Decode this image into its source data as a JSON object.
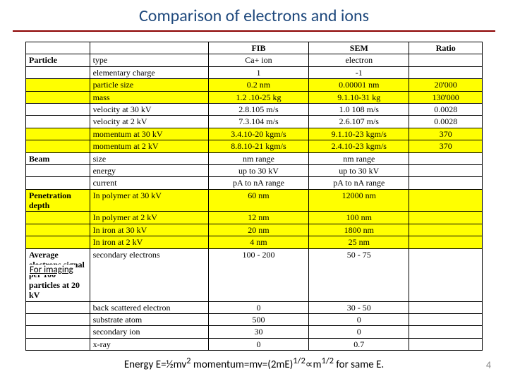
{
  "title": "Comparison of electrons and ions",
  "headers": {
    "c1": "",
    "c2": "",
    "c3": "FIB",
    "c4": "SEM",
    "c5": "Ratio"
  },
  "rows": [
    {
      "cat": "Particle",
      "prop": "type",
      "fib": "Ca+ ion",
      "sem": "electron",
      "ratio": "",
      "hl": false
    },
    {
      "cat": "",
      "prop": "elementary charge",
      "fib": "1",
      "sem": "-1",
      "ratio": "",
      "hl": false
    },
    {
      "cat": "",
      "prop": "particle size",
      "fib": "0.2 nm",
      "sem": "0.00001 nm",
      "ratio": "20'000",
      "hl": true
    },
    {
      "cat": "",
      "prop": "mass",
      "fib": "1.2 .10-25 kg",
      "sem": "9.1.10-31 kg",
      "ratio": "130'000",
      "hl": true
    },
    {
      "cat": "",
      "prop": "velocity at 30 kV",
      "fib": "2.8.105 m/s",
      "sem": "1.0 108 m/s",
      "ratio": "0.0028",
      "hl": false
    },
    {
      "cat": "",
      "prop": "velocity at 2 kV",
      "fib": "7.3.104 m/s",
      "sem": "2.6.107 m/s",
      "ratio": "0.0028",
      "hl": false
    },
    {
      "cat": "",
      "prop": "momentum at 30 kV",
      "fib": "3.4.10-20 kgm/s",
      "sem": "9.1.10-23 kgm/s",
      "ratio": "370",
      "hl": true
    },
    {
      "cat": "",
      "prop": "momentum at 2 kV",
      "fib": "8.8.10-21 kgm/s",
      "sem": "2.4.10-23 kgm/s",
      "ratio": "370",
      "hl": true
    },
    {
      "cat": "Beam",
      "prop": "size",
      "fib": "nm range",
      "sem": "nm range",
      "ratio": "",
      "hl": false
    },
    {
      "cat": "",
      "prop": "energy",
      "fib": "up to 30 kV",
      "sem": "up to 30 kV",
      "ratio": "",
      "hl": false
    },
    {
      "cat": "",
      "prop": "current",
      "fib": "pA to nA range",
      "sem": "pA to nA range",
      "ratio": "",
      "hl": false
    },
    {
      "cat": "Penetration depth",
      "prop": "In polymer at 30 kV",
      "fib": "60 nm",
      "sem": "12000 nm",
      "ratio": "",
      "hl": true
    },
    {
      "cat": "",
      "prop": "In polymer at 2 kV",
      "fib": "12 nm",
      "sem": "100 nm",
      "ratio": "",
      "hl": true
    },
    {
      "cat": "",
      "prop": "In iron at 30 kV",
      "fib": "20 nm",
      "sem": "1800 nm",
      "ratio": "",
      "hl": true
    },
    {
      "cat": "",
      "prop": "In iron at 2 kV",
      "fib": "4 nm",
      "sem": "25 nm",
      "ratio": "",
      "hl": true
    },
    {
      "cat": "Average electrons signal per 100 particles at 20 kV",
      "prop": "secondary electrons",
      "fib": "100 - 200",
      "sem": "50 - 75",
      "ratio": "",
      "hl": false
    },
    {
      "cat": "",
      "prop": "back scattered electron",
      "fib": "0",
      "sem": "30 - 50",
      "ratio": "",
      "hl": false
    },
    {
      "cat": "",
      "prop": "substrate atom",
      "fib": "500",
      "sem": "0",
      "ratio": "",
      "hl": false
    },
    {
      "cat": "",
      "prop": "secondary ion",
      "fib": "30",
      "sem": "0",
      "ratio": "",
      "hl": false
    },
    {
      "cat": "",
      "prop": "x-ray",
      "fib": "0",
      "sem": "0.7",
      "ratio": "",
      "hl": false
    }
  ],
  "note": "For imaging",
  "formula_parts": {
    "p1": "Energy E=½mv",
    "p1sup": "2",
    "p2": "    momentum=mv=(2mE)",
    "p2sup": "1/2",
    "p3": "∝m",
    "p3sup": "1/2",
    "p4": " for same E."
  },
  "slide_num": "4",
  "colors": {
    "title": "#1f497d",
    "underline": "#8b0000",
    "highlight": "#ffff00"
  }
}
